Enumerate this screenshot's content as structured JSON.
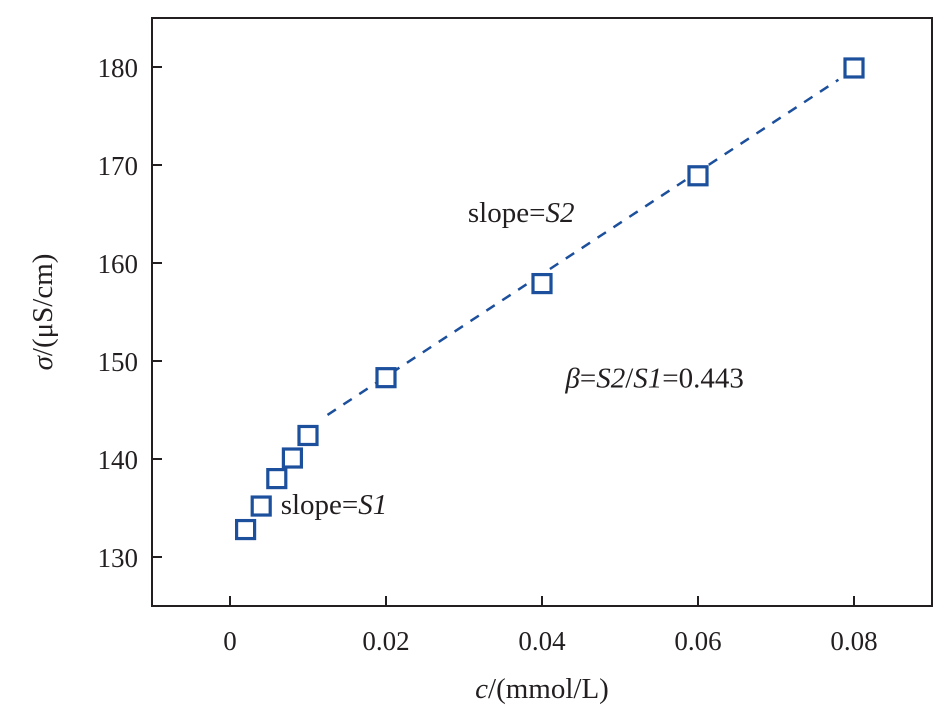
{
  "chart_data": {
    "type": "scatter",
    "xlabel": {
      "var": "c",
      "unit": "/(mmol/L)"
    },
    "ylabel": {
      "var": "σ",
      "unit": "/(μS/cm)"
    },
    "xlim": [
      -0.01,
      0.09
    ],
    "ylim": [
      125,
      185
    ],
    "x_ticks": [
      0,
      0.02,
      0.04,
      0.06,
      0.08
    ],
    "x_tick_labels": [
      "0",
      "0.02",
      "0.04",
      "0.06",
      "0.08"
    ],
    "y_ticks": [
      130,
      140,
      150,
      160,
      170,
      180
    ],
    "y_tick_labels": [
      "130",
      "140",
      "150",
      "160",
      "170",
      "180"
    ],
    "grid": false,
    "series": [
      {
        "marker": "open-square",
        "color": "#1c4f9c",
        "points": [
          {
            "x": 0.002,
            "y": 132.8
          },
          {
            "x": 0.004,
            "y": 135.2
          },
          {
            "x": 0.006,
            "y": 138.0
          },
          {
            "x": 0.008,
            "y": 140.1
          },
          {
            "x": 0.01,
            "y": 142.4
          },
          {
            "x": 0.02,
            "y": 148.3
          },
          {
            "x": 0.04,
            "y": 157.9
          },
          {
            "x": 0.06,
            "y": 168.9
          },
          {
            "x": 0.08,
            "y": 179.9
          }
        ]
      }
    ],
    "fit_line": {
      "style": "dashed",
      "color": "#1c4f9c",
      "from": {
        "x": 0.0125,
        "y": 144.5
      },
      "to": {
        "x": 0.078,
        "y": 178.7
      }
    },
    "annotations": [
      {
        "id": "s2",
        "parts": [
          {
            "text": "slope=",
            "italic": false
          },
          {
            "text": "S2",
            "italic": true
          }
        ],
        "x": 0.0305,
        "y": 164.2
      },
      {
        "id": "s1",
        "parts": [
          {
            "text": "slope=",
            "italic": false
          },
          {
            "text": "S1",
            "italic": true
          }
        ],
        "x": 0.0065,
        "y": 134.4
      },
      {
        "id": "beta",
        "parts": [
          {
            "text": "β",
            "italic": true
          },
          {
            "text": "=",
            "italic": false
          },
          {
            "text": "S2",
            "italic": true
          },
          {
            "text": "/",
            "italic": false
          },
          {
            "text": "S1",
            "italic": true
          },
          {
            "text": "=0.443",
            "italic": false
          }
        ],
        "x": 0.043,
        "y": 147.3
      }
    ]
  }
}
